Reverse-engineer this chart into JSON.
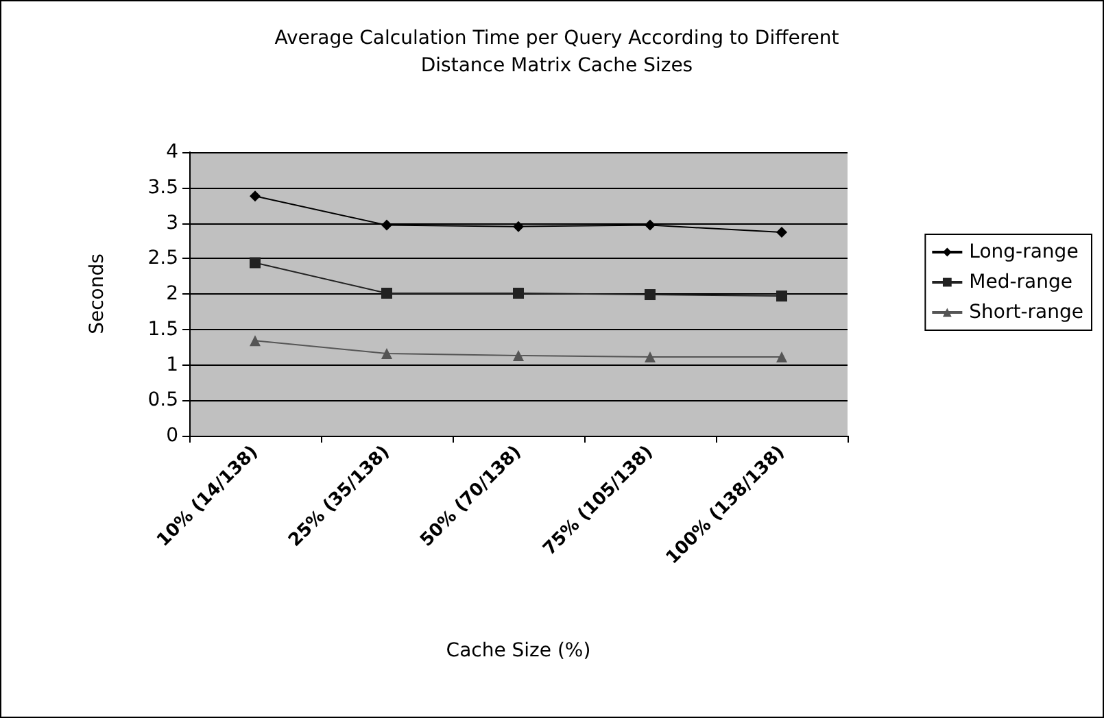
{
  "chart_data": {
    "type": "line",
    "title": "Average Calculation Time per Query According to Different\nDistance Matrix Cache Sizes",
    "xlabel": "Cache Size (%)",
    "ylabel": "Seconds",
    "categories": [
      "10% (14/138)",
      "25% (35/138)",
      "50% (70/138)",
      "75% (105/138)",
      "100% (138/138)"
    ],
    "series": [
      {
        "name": "Long-range",
        "color": "#000000",
        "marker": "diamond",
        "values": [
          3.38,
          2.97,
          2.95,
          2.97,
          2.87
        ]
      },
      {
        "name": "Med-range",
        "color": "#222222",
        "marker": "square",
        "values": [
          2.44,
          2.01,
          2.01,
          1.99,
          1.97
        ]
      },
      {
        "name": "Short-range",
        "color": "#555555",
        "marker": "triangle",
        "values": [
          1.34,
          1.16,
          1.13,
          1.11,
          1.11
        ]
      }
    ],
    "ylim": [
      0,
      4
    ],
    "yticks": [
      0,
      0.5,
      1,
      1.5,
      2,
      2.5,
      3,
      3.5,
      4
    ],
    "grid": "y",
    "legend": "right",
    "line_style": "solid"
  }
}
